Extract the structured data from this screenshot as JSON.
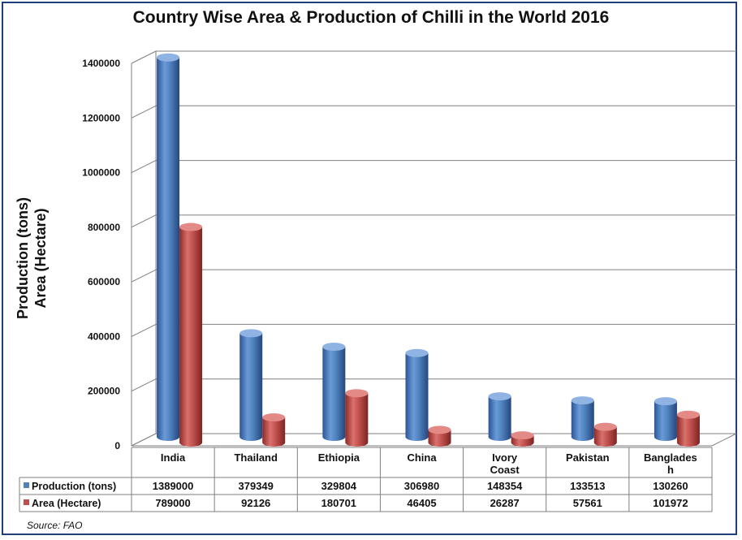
{
  "chart_data": {
    "type": "bar",
    "title": "Country Wise Area & Production of Chilli in the World 2016",
    "ylabel_lines": [
      "Production (tons)",
      "Area (Hectare)"
    ],
    "xlabel": "",
    "ylim": [
      0,
      1400000
    ],
    "yticks": [
      "0",
      "200000",
      "400000",
      "600000",
      "800000",
      "1000000",
      "1200000",
      "1400000"
    ],
    "categories": [
      "India",
      "Thailand",
      "Ethiopia",
      "China",
      "Ivory Coast",
      "Pakistan",
      "Banglades h"
    ],
    "category_lines": [
      [
        "India"
      ],
      [
        "Thailand"
      ],
      [
        "Ethiopia"
      ],
      [
        "China"
      ],
      [
        "Ivory",
        "Coast"
      ],
      [
        "Pakistan"
      ],
      [
        "Banglades",
        "h"
      ]
    ],
    "series": [
      {
        "name": "Production (tons)",
        "color": "#4f81bd",
        "values": [
          1389000,
          379349,
          329804,
          306980,
          148354,
          133513,
          130260
        ],
        "labels": [
          "1389000",
          "379349",
          "329804",
          "306980",
          "148354",
          "133513",
          "130260"
        ]
      },
      {
        "name": "Area (Hectare)",
        "color": "#c0504d",
        "values": [
          789000,
          92126,
          180701,
          46405,
          26287,
          57561,
          101972
        ],
        "labels": [
          "789000",
          "92126",
          "180701",
          "46405",
          "26287",
          "57561",
          "101972"
        ]
      }
    ],
    "grid": true,
    "legend": "data-table"
  },
  "source": "Source: FAO"
}
